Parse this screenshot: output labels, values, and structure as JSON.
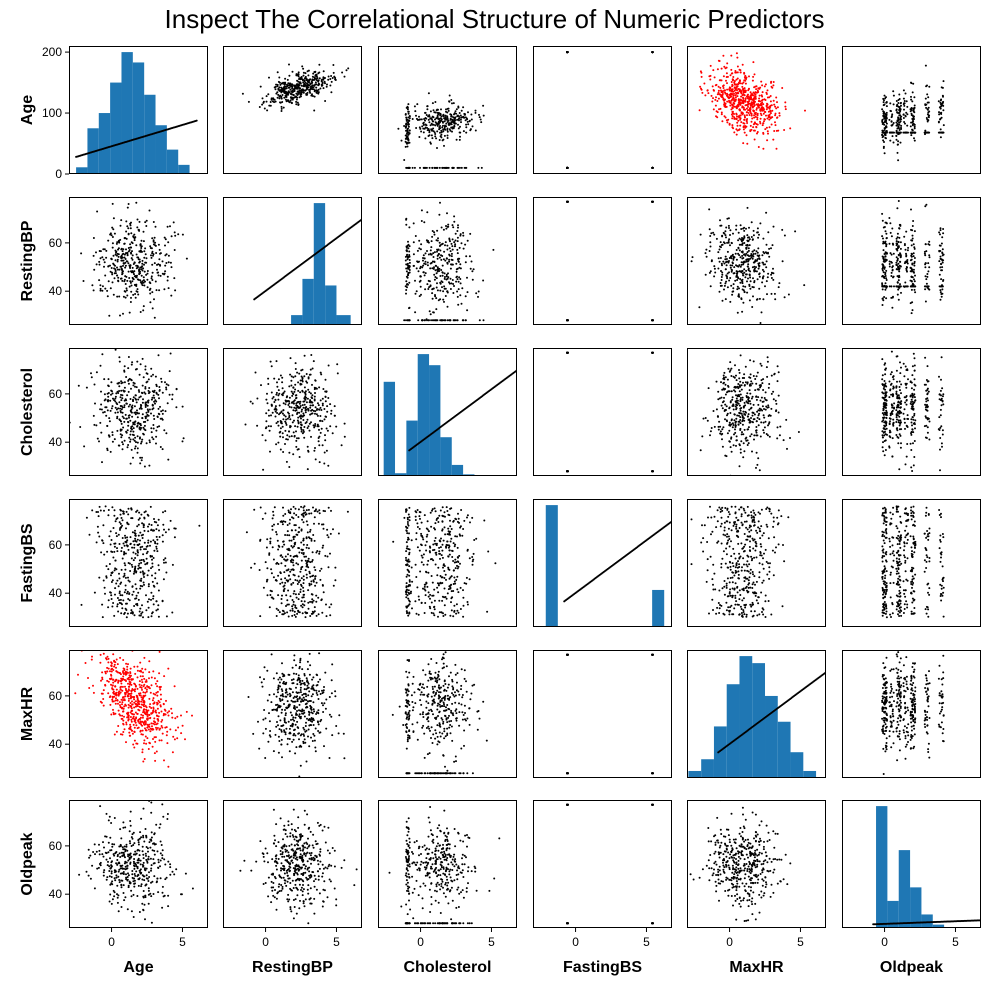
{
  "chart_data": {
    "type": "scatter",
    "title": "Inspect The Correlational Structure of Numeric Predictors",
    "variables": [
      "Age",
      "RestingBP",
      "Cholesterol",
      "FastingBS",
      "MaxHR",
      "Oldpeak"
    ],
    "highlight_color": "#ff0000",
    "point_color": "#000000",
    "histogram_color": "#1f77b4",
    "x_axis": {
      "ticks": [
        0,
        5
      ],
      "range": [
        -3,
        6.8
      ]
    },
    "y_axis_row_1": {
      "ticks": [
        0,
        100,
        200
      ],
      "range": [
        0,
        210
      ]
    },
    "y_axis_other_rows": {
      "ticks": [
        40,
        60
      ],
      "range": [
        26,
        79
      ]
    },
    "highlighted_pairs": [
      [
        "Age",
        "MaxHR"
      ],
      [
        "MaxHR",
        "Age"
      ]
    ],
    "histograms": [
      {
        "variable": "Age",
        "bin_edges": [
          -2.5,
          -1.7,
          -0.9,
          -0.1,
          0.7,
          1.5,
          2.3,
          3.1,
          3.9,
          4.7,
          5.5
        ],
        "counts": [
          11,
          75,
          100,
          150,
          200,
          183,
          130,
          80,
          40,
          15
        ]
      },
      {
        "variable": "RestingBP",
        "bin_edges": [
          -3.0,
          -2.2,
          -1.4,
          -0.6,
          0.2,
          1.0,
          1.8,
          2.6,
          3.4,
          4.2,
          5.0,
          6.0
        ],
        "counts": [
          1,
          0,
          0,
          0,
          0,
          2,
          30,
          140,
          370,
          120,
          30
        ]
      },
      {
        "variable": "Cholesterol",
        "bin_edges": [
          -2.6,
          -1.8,
          -1.0,
          -0.2,
          0.6,
          1.4,
          2.2,
          3.0,
          3.8
        ],
        "counts": [
          170,
          5,
          100,
          220,
          200,
          70,
          20,
          3
        ]
      },
      {
        "variable": "FastingBS",
        "bin_edges": [
          -2.1,
          -1.25,
          5.4,
          6.25
        ],
        "counts": [
          704,
          0,
          214
        ]
      },
      {
        "variable": "MaxHR",
        "bin_edges": [
          -2.9,
          -2.0,
          -1.1,
          -0.2,
          0.7,
          1.6,
          2.5,
          3.4,
          4.3,
          5.2,
          6.1
        ],
        "counts": [
          15,
          40,
          110,
          200,
          260,
          245,
          175,
          120,
          55,
          15
        ]
      },
      {
        "variable": "Oldpeak",
        "bin_edges": [
          -3.0,
          -2.2,
          -1.4,
          -0.6,
          0.2,
          1.0,
          1.8,
          2.6,
          3.4,
          4.2,
          5.0
        ],
        "counts": [
          0,
          0,
          0,
          360,
          80,
          230,
          120,
          40,
          10,
          2
        ]
      }
    ]
  }
}
